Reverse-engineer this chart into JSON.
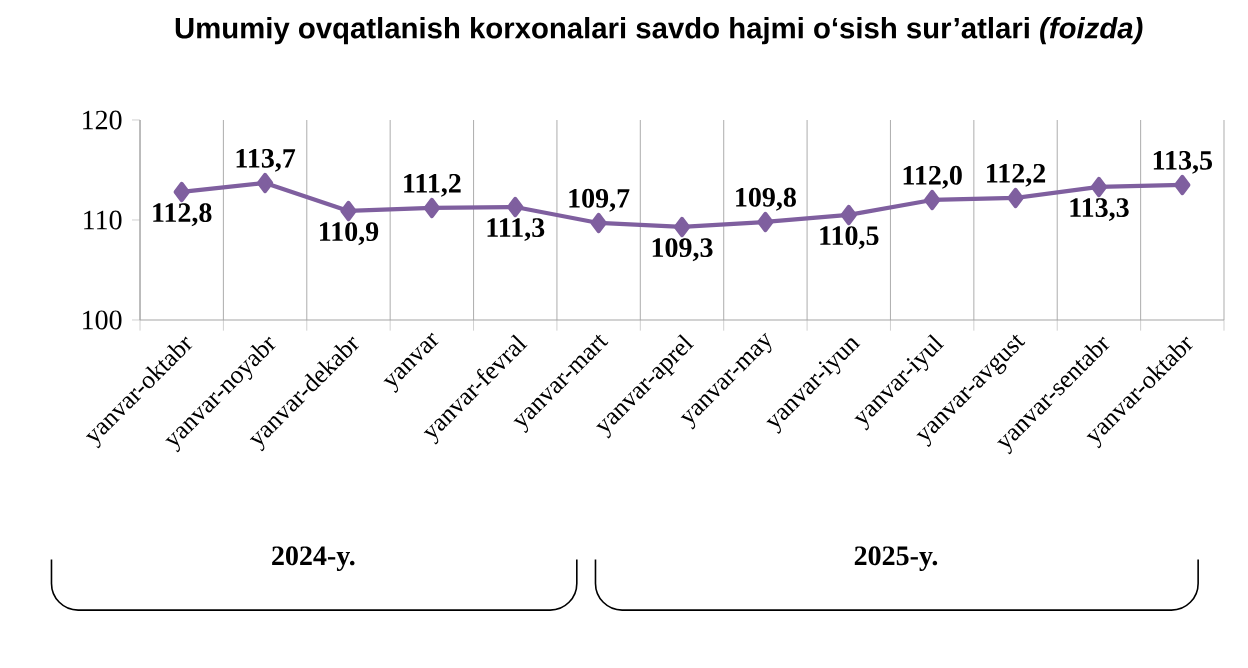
{
  "chart_data": {
    "type": "line",
    "title": "Umumiy ovqatlanish korxonalari savdo hajmi o‘sish sur’atlari *(foizda)*",
    "categories": [
      "yanvar-oktabr",
      "yanvar-noyabr",
      "yanvar-dekabr",
      "yanvar",
      "yanvar-fevral",
      "yanvar-mart",
      "yanvar-aprel",
      "yanvar-may",
      "yanvar-iyun",
      "yanvar-iyul",
      "yanvar-avgust",
      "yanvar-sentabr",
      "yanvar-oktabr"
    ],
    "series": [
      {
        "color": "#7f5f9f",
        "values": [
          112.8,
          113.7,
          110.9,
          111.2,
          111.3,
          109.7,
          109.3,
          109.8,
          110.5,
          112.0,
          112.2,
          113.3,
          113.5
        ],
        "value_labels": [
          "112,8",
          "113,7",
          "110,9",
          "111,2",
          "111,3",
          "109,7",
          "109,3",
          "109,8",
          "110,5",
          "112,0",
          "112,2",
          "113,3",
          "113,5"
        ]
      }
    ],
    "ylim": [
      100,
      120
    ],
    "yticks": [
      100,
      110,
      120
    ],
    "grid": "x",
    "marker": "diamond",
    "line_style": "solid",
    "annotations": [
      "2024-y.",
      "2025-y."
    ]
  }
}
